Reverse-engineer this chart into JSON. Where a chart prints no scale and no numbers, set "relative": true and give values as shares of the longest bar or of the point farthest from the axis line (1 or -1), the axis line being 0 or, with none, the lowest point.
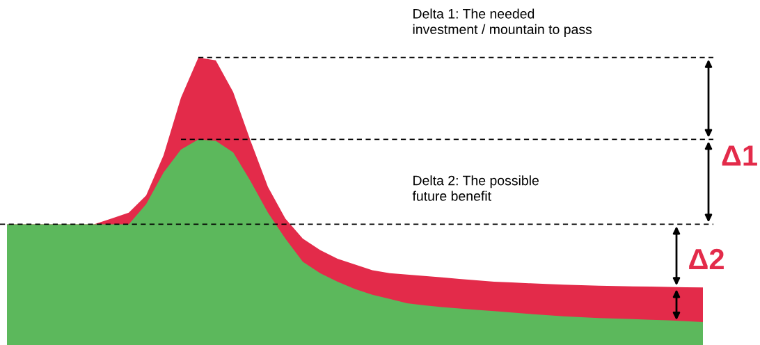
{
  "chart_data": {
    "type": "area",
    "relative": true,
    "categories": [
      null,
      null,
      null,
      null,
      null,
      null,
      null,
      null,
      null,
      null,
      null,
      null,
      null,
      null,
      null,
      null,
      null,
      null,
      null,
      null,
      null,
      null,
      null,
      null,
      null,
      null,
      null,
      null,
      null,
      null,
      null,
      null,
      null,
      null,
      null,
      null,
      null,
      null,
      null,
      null,
      null
    ],
    "series": [
      {
        "color": "#e32b4a",
        "values": [
          0.42,
          0.42,
          0.42,
          0.42,
          0.42,
          0.42,
          0.44,
          0.46,
          0.52,
          0.66,
          0.86,
          1,
          0.99,
          0.88,
          0.71,
          0.55,
          0.44,
          0.37,
          0.33,
          0.3,
          0.28,
          0.26,
          0.25,
          0.245,
          0.24,
          0.235,
          0.23,
          0.225,
          0.22,
          0.218,
          0.215,
          0.212,
          0.21,
          0.208,
          0.206,
          0.205,
          0.204,
          0.203,
          0.202,
          0.201,
          0.2
        ]
      },
      {
        "color": "#5cb85c",
        "values": [
          0.42,
          0.42,
          0.42,
          0.42,
          0.42,
          0.42,
          0.42,
          0.42,
          0.49,
          0.6,
          0.68,
          0.715,
          0.71,
          0.67,
          0.57,
          0.46,
          0.37,
          0.29,
          0.25,
          0.22,
          0.195,
          0.175,
          0.16,
          0.145,
          0.138,
          0.132,
          0.127,
          0.122,
          0.118,
          0.113,
          0.108,
          0.104,
          0.1,
          0.097,
          0.094,
          0.092,
          0.09,
          0.088,
          0.086,
          0.083,
          0.08
        ]
      }
    ],
    "ref_lines": [
      {
        "axis": "y",
        "value": 1,
        "label": null,
        "line_style": "dashed",
        "color": "#000000"
      },
      {
        "axis": "y",
        "value": 0.715,
        "label": null,
        "line_style": "dashed",
        "color": "#000000"
      },
      {
        "axis": "y",
        "value": 0.42,
        "label": null,
        "line_style": "dashed",
        "color": "#000000"
      }
    ],
    "annotations": [
      "Delta 1: The needed\ninvestment / mountain to pass",
      "Delta 2: The possible\nfuture benefit",
      "Δ1",
      "Δ2"
    ]
  }
}
